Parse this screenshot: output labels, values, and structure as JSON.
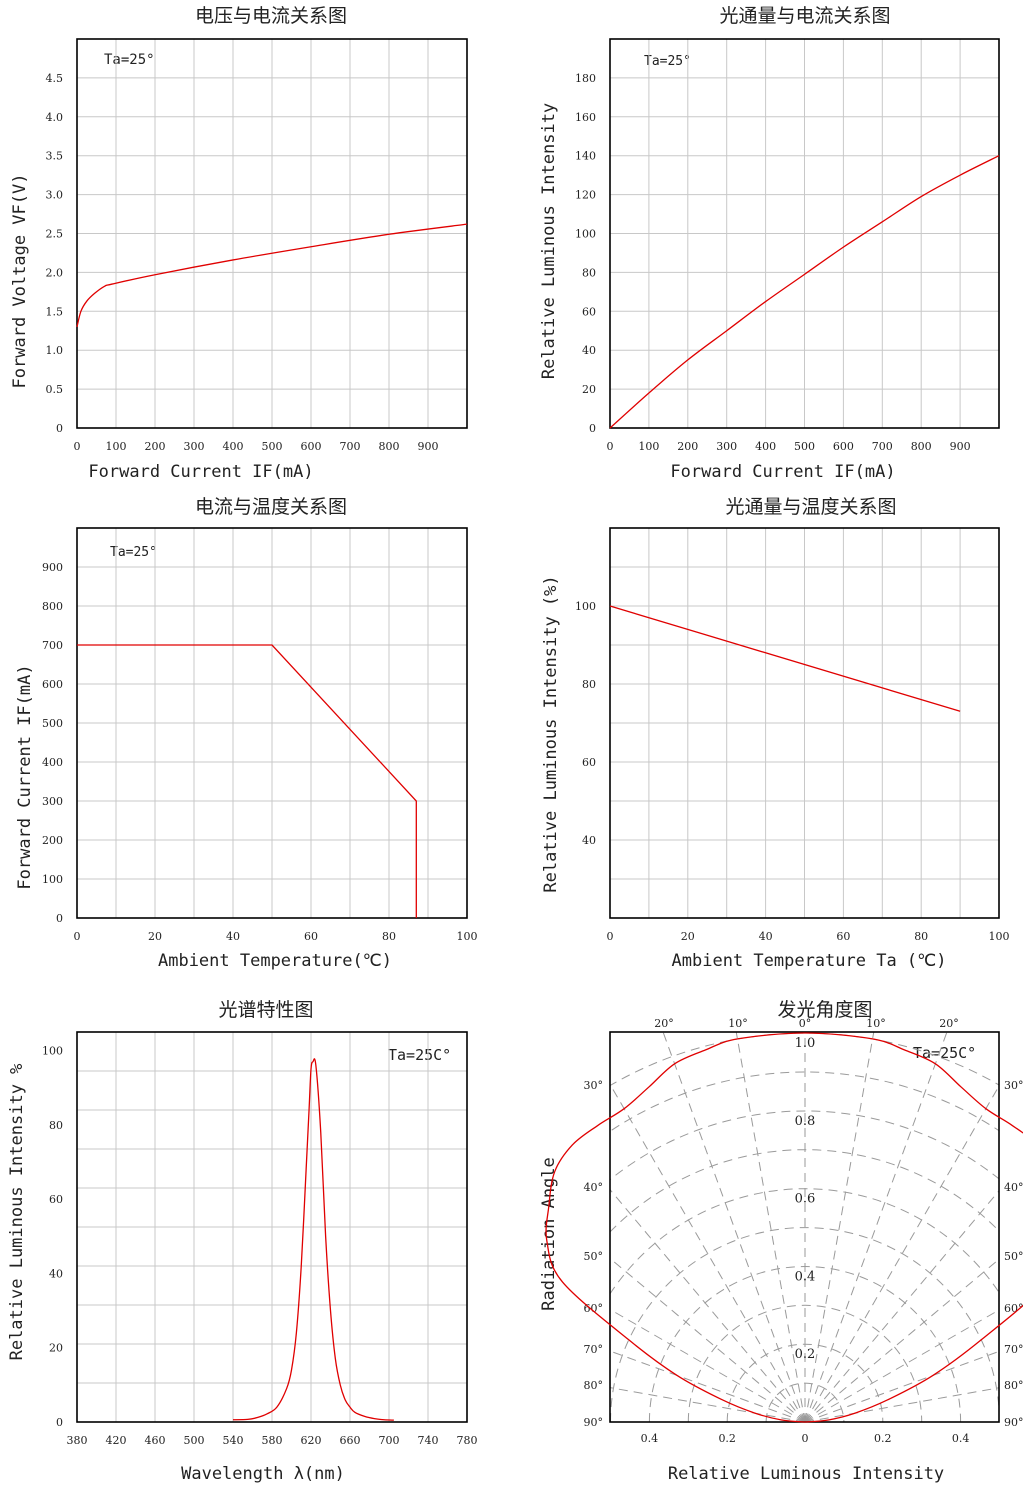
{
  "chart_data": [
    {
      "type": "line",
      "title": "电压与电流关系图",
      "xlabel": "Forward Current IF(mA)",
      "ylabel": "Forward Voltage VF(V)",
      "annotation": "Ta=25°",
      "xlim": [
        0,
        1000
      ],
      "ylim": [
        0,
        5
      ],
      "xticks": [
        "0",
        "100",
        "200",
        "300",
        "400",
        "500",
        "600",
        "700",
        "800",
        "900"
      ],
      "yticks": [
        "0",
        "0.5",
        "1.0",
        "1.5",
        "2.0",
        "2.5",
        "3.0",
        "3.5",
        "4.0",
        "4.5"
      ],
      "series": [
        {
          "x": [
            0,
            10,
            25,
            45,
            70,
            90,
            200,
            400,
            600,
            800,
            1000
          ],
          "y": [
            1.3,
            1.5,
            1.63,
            1.73,
            1.82,
            1.85,
            1.97,
            2.16,
            2.33,
            2.49,
            2.62
          ]
        }
      ]
    },
    {
      "type": "line",
      "title": "光通量与电流关系图",
      "xlabel": "Forward Current IF(mA)",
      "ylabel": "Relative Luminous Intensity",
      "annotation": "Ta=25°",
      "xlim": [
        0,
        1000
      ],
      "ylim": [
        0,
        200
      ],
      "xticks": [
        "0",
        "100",
        "200",
        "300",
        "400",
        "500",
        "600",
        "700",
        "800",
        "900"
      ],
      "yticks": [
        "0",
        "20",
        "40",
        "60",
        "80",
        "100",
        "120",
        "140",
        "160",
        "180"
      ],
      "series": [
        {
          "x": [
            0,
            100,
            200,
            300,
            400,
            500,
            600,
            700,
            800,
            900,
            1000
          ],
          "y": [
            0,
            18,
            35,
            50,
            65,
            79,
            93,
            106,
            119,
            130,
            140
          ]
        }
      ]
    },
    {
      "type": "line",
      "title": "电流与温度关系图",
      "xlabel": "Ambient Temperature(℃)",
      "ylabel": "Forward Current IF(mA)",
      "annotation": "Ta=25°",
      "xlim": [
        0,
        100
      ],
      "ylim": [
        0,
        1000
      ],
      "xticks": [
        "0",
        "20",
        "40",
        "60",
        "80",
        "100"
      ],
      "yticks": [
        "0",
        "100",
        "200",
        "300",
        "400",
        "500",
        "600",
        "700",
        "800",
        "900"
      ],
      "series": [
        {
          "x": [
            0,
            50,
            87,
            87
          ],
          "y": [
            700,
            700,
            300,
            0
          ]
        }
      ]
    },
    {
      "type": "line",
      "title": "光通量与温度关系图",
      "xlabel": "Ambient Temperature Ta (℃)",
      "ylabel": "Relative Luminous Intensity (%)",
      "xlim": [
        0,
        100
      ],
      "ylim": [
        20,
        120
      ],
      "xticks": [
        "0",
        "20",
        "40",
        "60",
        "80",
        "100"
      ],
      "yticks": [
        "40",
        "60",
        "80",
        "100"
      ],
      "series": [
        {
          "x": [
            0,
            90
          ],
          "y": [
            100,
            73
          ]
        }
      ]
    },
    {
      "type": "line",
      "title": "光谱特性图",
      "xlabel": "Wavelength λ(nm)",
      "ylabel": "Relative Luminous Intensity %",
      "annotation": "Ta=25C°",
      "xlim": [
        380,
        780
      ],
      "ylim": [
        0,
        105
      ],
      "xticks": [
        "380",
        "420",
        "460",
        "500",
        "540",
        "580",
        "620",
        "660",
        "700",
        "740",
        "780"
      ],
      "yticks": [
        "0",
        "20",
        "40",
        "60",
        "80",
        "100"
      ],
      "series": [
        {
          "x": [
            540,
            555,
            565,
            575,
            585,
            595,
            600,
            605,
            610,
            615,
            618,
            620,
            622,
            625,
            630,
            635,
            640,
            645,
            650,
            655,
            660,
            665,
            675,
            685,
            695,
            705
          ],
          "y": [
            0.6,
            0.7,
            1.2,
            2.2,
            4,
            9,
            14,
            24,
            42,
            68,
            84,
            95,
            97,
            96,
            78,
            50,
            30,
            17,
            10,
            6,
            4,
            2.6,
            1.5,
            0.9,
            0.6,
            0.5
          ]
        }
      ]
    },
    {
      "type": "line",
      "title": "发光角度图",
      "xlabel": "Relative Luminous Intensity",
      "ylabel": "Radiation Angle",
      "annotation": "Ta=25C°",
      "xticks": [
        "0.4",
        "0.2",
        "0",
        "0.2",
        "0.4"
      ],
      "radial_labels": [
        "1.0",
        "0.8",
        "0.6",
        "0.4",
        "0.2"
      ],
      "angle_labels": [
        "0°",
        "10°",
        "20°",
        "30°",
        "40°",
        "50°",
        "60°",
        "70°",
        "80°",
        "90°"
      ],
      "series": [
        {
          "angle_deg": [
            0,
            10,
            15,
            20,
            25,
            30,
            35,
            40,
            45,
            50,
            55,
            60,
            65,
            70,
            75,
            80,
            85,
            90
          ],
          "r": [
            1.0,
            1.0,
            0.99,
            0.98,
            0.95,
            0.93,
            0.93,
            0.93,
            0.91,
            0.86,
            0.81,
            0.72,
            0.5,
            0.35,
            0.22,
            0.13,
            0.06,
            0
          ]
        }
      ]
    }
  ]
}
